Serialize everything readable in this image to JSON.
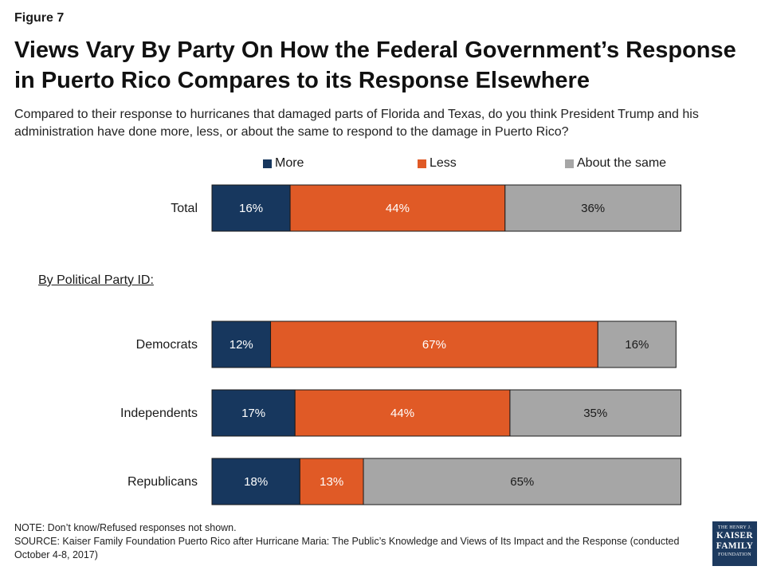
{
  "figure_label": "Figure 7",
  "title": "Views Vary By Party On How the Federal Government’s Response in Puerto Rico Compares to its Response Elsewhere",
  "subtitle": "Compared to their response to hurricanes that damaged parts of Florida and Texas, do you think President Trump and his administration have done more, less, or about the same to respond to the damage in Puerto Rico?",
  "group_label": "By Political Party ID:",
  "note": "NOTE: Don’t know/Refused responses not shown.",
  "source": "SOURCE: Kaiser Family Foundation Puerto Rico after Hurricane Maria: The Public’s Knowledge and Views of Its Impact and the Response (conducted October 4-8, 2017)",
  "logo": {
    "line1": "THE HENRY J.",
    "line2": "KAISER",
    "line3": "FAMILY",
    "line4": "FOUNDATION"
  },
  "colors": {
    "more": "#17375e",
    "less": "#e05a26",
    "same": "#a6a6a6"
  },
  "chart_data": {
    "type": "bar",
    "orientation": "horizontal",
    "stacked": true,
    "categories": [
      "Total",
      "Democrats",
      "Independents",
      "Republicans"
    ],
    "series": [
      {
        "name": "More",
        "values": [
          16,
          12,
          17,
          18
        ],
        "labels": [
          "16%",
          "12%",
          "17%",
          "18%"
        ]
      },
      {
        "name": "Less",
        "values": [
          44,
          67,
          44,
          13
        ],
        "labels": [
          "44%",
          "67%",
          "44%",
          "13%"
        ]
      },
      {
        "name": "About the same",
        "values": [
          36,
          16,
          35,
          65
        ],
        "labels": [
          "36%",
          "16%",
          "35%",
          "65%"
        ]
      }
    ],
    "xlim": [
      0,
      100
    ],
    "legend_position": "top",
    "grid": false
  }
}
